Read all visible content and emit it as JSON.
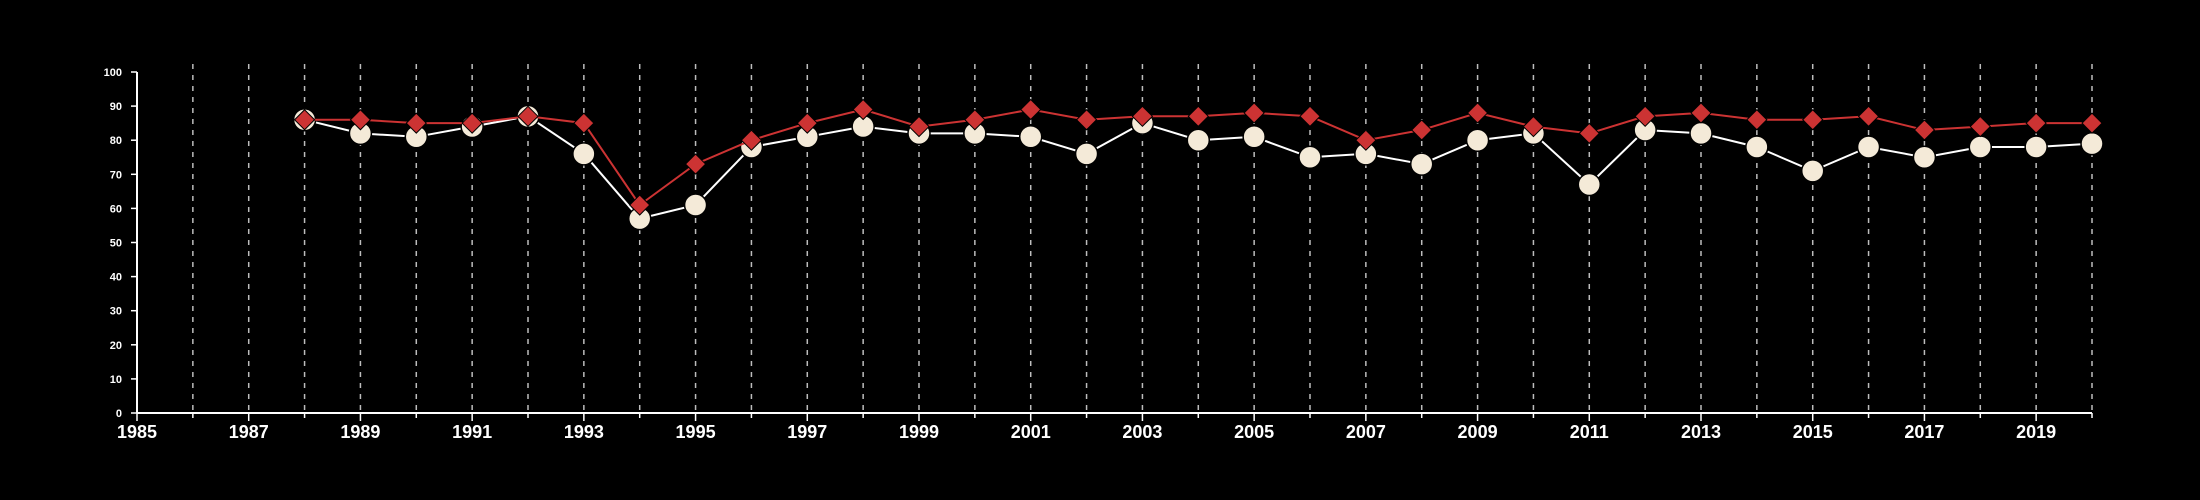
{
  "chart_data": {
    "type": "line",
    "title": "",
    "xlabel": "",
    "ylabel": "",
    "xlim": [
      1985,
      2020
    ],
    "ylim": [
      0,
      100
    ],
    "x_ticks": [
      1985,
      1987,
      1989,
      1991,
      1993,
      1995,
      1997,
      1999,
      2001,
      2003,
      2005,
      2007,
      2009,
      2011,
      2013,
      2015,
      2017,
      2019
    ],
    "y_ticks": [
      0,
      10,
      20,
      30,
      40,
      50,
      60,
      70,
      80,
      90,
      100
    ],
    "vertical_grid": "dashed, every year",
    "horizontal_grid": false,
    "legend": "none",
    "x": [
      1988,
      1989,
      1990,
      1991,
      1992,
      1993,
      1994,
      1995,
      1996,
      1997,
      1998,
      1999,
      2000,
      2001,
      2002,
      2003,
      2004,
      2005,
      2006,
      2007,
      2008,
      2009,
      2010,
      2011,
      2012,
      2013,
      2014,
      2015,
      2016,
      2017,
      2018,
      2019,
      2020
    ],
    "series": [
      {
        "marker": "circle",
        "color": "#f4ead8",
        "line_color": "#ffffff",
        "values": [
          86,
          82,
          81,
          84,
          87,
          76,
          57,
          61,
          78,
          81,
          84,
          82,
          82,
          81,
          76,
          85,
          80,
          81,
          75,
          76,
          73,
          80,
          82,
          67,
          83,
          82,
          78,
          71,
          78,
          75,
          78,
          78,
          79
        ]
      },
      {
        "marker": "diamond",
        "color": "#cc3333",
        "line_color": "#cc3333",
        "values": [
          86,
          86,
          85,
          85,
          87,
          85,
          61,
          73,
          80,
          85,
          89,
          84,
          86,
          89,
          86,
          87,
          87,
          88,
          87,
          80,
          83,
          88,
          84,
          82,
          87,
          88,
          86,
          86,
          87,
          83,
          84,
          85,
          85
        ]
      }
    ]
  }
}
